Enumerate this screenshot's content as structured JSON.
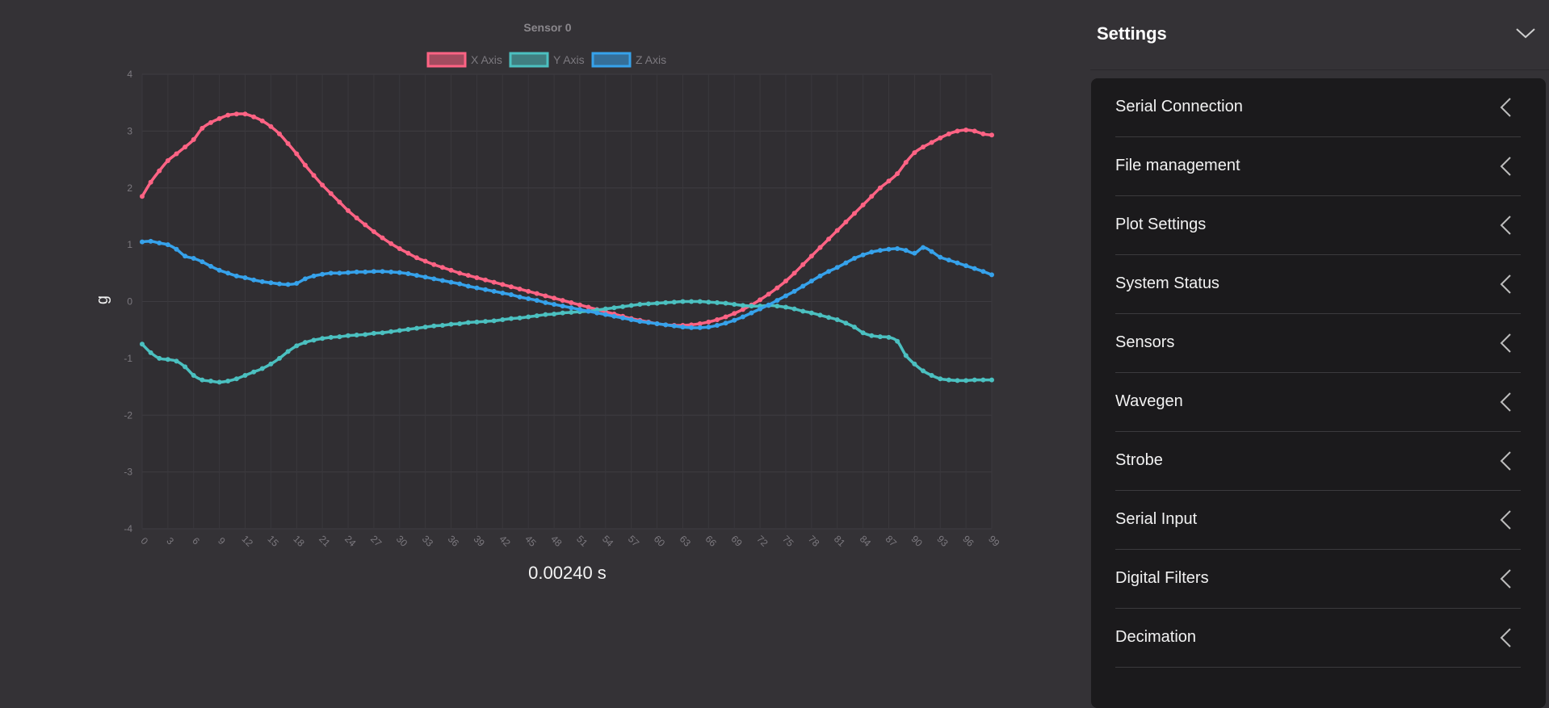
{
  "chart_data": {
    "type": "line",
    "title": "Sensor 0",
    "xlabel": "0.00240 s",
    "ylabel": "g",
    "xlim": [
      0,
      99
    ],
    "ylim": [
      -4,
      4
    ],
    "yticks": [
      "4",
      "3",
      "2",
      "1",
      "0",
      "-1",
      "-2",
      "-3",
      "-4"
    ],
    "xticks": [
      "0",
      "3",
      "6",
      "9",
      "12",
      "15",
      "18",
      "21",
      "24",
      "27",
      "30",
      "33",
      "36",
      "39",
      "42",
      "45",
      "48",
      "51",
      "54",
      "57",
      "60",
      "63",
      "66",
      "69",
      "72",
      "75",
      "78",
      "81",
      "84",
      "87",
      "90",
      "93",
      "96",
      "99"
    ],
    "grid": true,
    "legend": "top-center",
    "series": [
      {
        "name": "X Axis",
        "color": "#ff6384",
        "values": [
          1.85,
          2.1,
          2.3,
          2.48,
          2.6,
          2.72,
          2.85,
          3.05,
          3.15,
          3.22,
          3.28,
          3.3,
          3.3,
          3.25,
          3.18,
          3.08,
          2.95,
          2.78,
          2.6,
          2.4,
          2.22,
          2.05,
          1.9,
          1.75,
          1.6,
          1.47,
          1.35,
          1.23,
          1.12,
          1.02,
          0.93,
          0.85,
          0.77,
          0.71,
          0.65,
          0.6,
          0.55,
          0.5,
          0.46,
          0.42,
          0.38,
          0.34,
          0.3,
          0.26,
          0.22,
          0.18,
          0.14,
          0.1,
          0.06,
          0.02,
          -0.02,
          -0.06,
          -0.1,
          -0.14,
          -0.18,
          -0.22,
          -0.26,
          -0.3,
          -0.33,
          -0.36,
          -0.39,
          -0.41,
          -0.42,
          -0.42,
          -0.41,
          -0.39,
          -0.36,
          -0.32,
          -0.27,
          -0.21,
          -0.14,
          -0.06,
          0.03,
          0.13,
          0.24,
          0.36,
          0.5,
          0.65,
          0.8,
          0.95,
          1.1,
          1.25,
          1.4,
          1.55,
          1.7,
          1.85,
          2.0,
          2.12,
          2.25,
          2.45,
          2.62,
          2.72,
          2.8,
          2.88,
          2.95,
          3.0,
          3.02,
          3.0,
          2.95,
          2.93
        ]
      },
      {
        "name": "Y Axis",
        "color": "#4bc0c0",
        "values": [
          -0.75,
          -0.9,
          -1.0,
          -1.02,
          -1.05,
          -1.15,
          -1.3,
          -1.38,
          -1.4,
          -1.42,
          -1.4,
          -1.36,
          -1.3,
          -1.24,
          -1.18,
          -1.1,
          -1.0,
          -0.88,
          -0.78,
          -0.72,
          -0.68,
          -0.65,
          -0.63,
          -0.62,
          -0.6,
          -0.59,
          -0.58,
          -0.56,
          -0.55,
          -0.53,
          -0.51,
          -0.49,
          -0.47,
          -0.45,
          -0.43,
          -0.42,
          -0.4,
          -0.39,
          -0.37,
          -0.36,
          -0.35,
          -0.34,
          -0.32,
          -0.3,
          -0.29,
          -0.27,
          -0.25,
          -0.23,
          -0.22,
          -0.2,
          -0.19,
          -0.18,
          -0.17,
          -0.15,
          -0.13,
          -0.11,
          -0.09,
          -0.07,
          -0.05,
          -0.04,
          -0.03,
          -0.02,
          -0.01,
          0.0,
          0.0,
          0.0,
          -0.01,
          -0.02,
          -0.03,
          -0.05,
          -0.07,
          -0.08,
          -0.08,
          -0.07,
          -0.08,
          -0.1,
          -0.13,
          -0.17,
          -0.2,
          -0.24,
          -0.28,
          -0.32,
          -0.38,
          -0.45,
          -0.55,
          -0.6,
          -0.62,
          -0.63,
          -0.7,
          -0.95,
          -1.1,
          -1.22,
          -1.3,
          -1.36,
          -1.38,
          -1.39,
          -1.39,
          -1.38,
          -1.38,
          -1.38
        ]
      },
      {
        "name": "Z Axis",
        "color": "#36a2eb",
        "values": [
          1.05,
          1.06,
          1.03,
          1.0,
          0.92,
          0.8,
          0.76,
          0.7,
          0.62,
          0.55,
          0.5,
          0.45,
          0.42,
          0.38,
          0.35,
          0.33,
          0.31,
          0.3,
          0.32,
          0.4,
          0.45,
          0.48,
          0.5,
          0.5,
          0.51,
          0.52,
          0.52,
          0.53,
          0.53,
          0.52,
          0.51,
          0.49,
          0.46,
          0.43,
          0.4,
          0.37,
          0.34,
          0.31,
          0.27,
          0.24,
          0.21,
          0.18,
          0.15,
          0.12,
          0.08,
          0.05,
          0.02,
          -0.02,
          -0.05,
          -0.08,
          -0.11,
          -0.14,
          -0.17,
          -0.2,
          -0.23,
          -0.26,
          -0.29,
          -0.32,
          -0.35,
          -0.37,
          -0.39,
          -0.41,
          -0.43,
          -0.45,
          -0.46,
          -0.46,
          -0.45,
          -0.42,
          -0.38,
          -0.33,
          -0.27,
          -0.2,
          -0.13,
          -0.06,
          0.02,
          0.1,
          0.18,
          0.27,
          0.36,
          0.45,
          0.53,
          0.6,
          0.68,
          0.76,
          0.82,
          0.87,
          0.9,
          0.92,
          0.93,
          0.9,
          0.85,
          0.95,
          0.88,
          0.78,
          0.73,
          0.68,
          0.63,
          0.58,
          0.53,
          0.47
        ]
      }
    ]
  },
  "settings": {
    "title": "Settings",
    "items": [
      {
        "label": "Serial Connection"
      },
      {
        "label": "File management"
      },
      {
        "label": "Plot Settings"
      },
      {
        "label": "System Status"
      },
      {
        "label": "Sensors"
      },
      {
        "label": "Wavegen"
      },
      {
        "label": "Strobe"
      },
      {
        "label": "Serial Input"
      },
      {
        "label": "Digital Filters"
      },
      {
        "label": "Decimation"
      }
    ]
  }
}
